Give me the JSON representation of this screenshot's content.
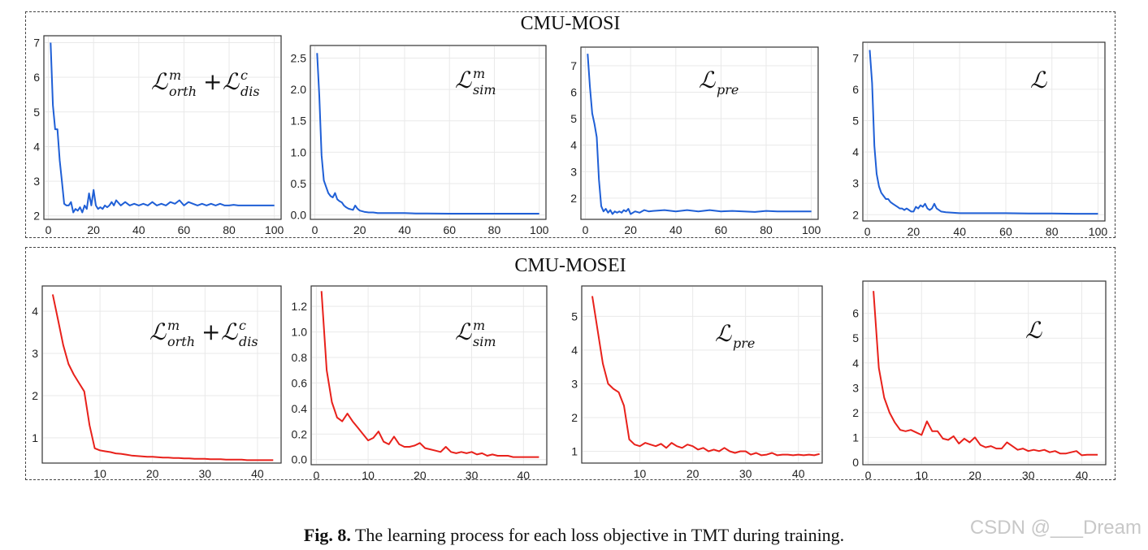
{
  "groups": [
    {
      "title": "CMU-MOSI"
    },
    {
      "title": "CMU-MOSEI"
    }
  ],
  "caption": {
    "label": "Fig. 8.",
    "text": "The learning process for each loss objective in TMT during training."
  },
  "watermark": "CSDN @___Dream",
  "colors": {
    "mosi": "#1f5fd6",
    "mosei": "#e8211b"
  },
  "chart_data": [
    {
      "type": "line",
      "group": "CMU-MOSI",
      "series_color": "#1f5fd6",
      "label": {
        "L": "ℒ",
        "sup1": "m",
        "sub1": "orth",
        "op": "+",
        "L2": "ℒ",
        "sup2": "c",
        "sub2": "dis"
      },
      "xlim": [
        -2,
        103
      ],
      "ylim": [
        1.9,
        7.2
      ],
      "xticks": [
        0,
        20,
        40,
        60,
        80,
        100
      ],
      "yticks": [
        2,
        3,
        4,
        5,
        6,
        7
      ],
      "x": [
        1,
        2,
        3,
        4,
        5,
        6,
        7,
        8,
        9,
        10,
        11,
        12,
        13,
        14,
        15,
        16,
        17,
        18,
        19,
        20,
        21,
        22,
        23,
        24,
        25,
        26,
        27,
        28,
        29,
        30,
        32,
        34,
        36,
        38,
        40,
        42,
        44,
        46,
        48,
        50,
        52,
        54,
        56,
        58,
        60,
        62,
        64,
        66,
        68,
        70,
        72,
        74,
        76,
        78,
        80,
        82,
        84,
        86,
        88,
        90,
        92,
        94,
        96,
        98,
        100
      ],
      "y": [
        7.0,
        5.2,
        4.5,
        4.5,
        3.6,
        3.0,
        2.35,
        2.3,
        2.3,
        2.4,
        2.1,
        2.2,
        2.15,
        2.25,
        2.1,
        2.3,
        2.2,
        2.65,
        2.3,
        2.75,
        2.3,
        2.2,
        2.25,
        2.2,
        2.3,
        2.25,
        2.3,
        2.4,
        2.3,
        2.45,
        2.3,
        2.4,
        2.3,
        2.35,
        2.3,
        2.35,
        2.3,
        2.4,
        2.3,
        2.35,
        2.3,
        2.4,
        2.35,
        2.45,
        2.3,
        2.4,
        2.35,
        2.3,
        2.35,
        2.3,
        2.35,
        2.3,
        2.35,
        2.3,
        2.3,
        2.32,
        2.3,
        2.3,
        2.3,
        2.3,
        2.3,
        2.3,
        2.3,
        2.3,
        2.3
      ]
    },
    {
      "type": "line",
      "group": "CMU-MOSI",
      "series_color": "#1f5fd6",
      "label": {
        "L": "ℒ",
        "sup1": "m",
        "sub1": "sim"
      },
      "xlim": [
        -2,
        103
      ],
      "ylim": [
        -0.07,
        2.7
      ],
      "xticks": [
        0,
        20,
        40,
        60,
        80,
        100
      ],
      "yticks": [
        0.0,
        0.5,
        1.0,
        1.5,
        2.0,
        2.5
      ],
      "ytick_labels": [
        "0.0",
        "0.5",
        "1.0",
        "1.5",
        "2.0",
        "2.5"
      ],
      "x": [
        1,
        2,
        3,
        4,
        5,
        6,
        7,
        8,
        9,
        10,
        11,
        12,
        13,
        14,
        15,
        16,
        17,
        18,
        19,
        20,
        22,
        24,
        26,
        28,
        30,
        35,
        40,
        45,
        50,
        60,
        70,
        80,
        90,
        100
      ],
      "y": [
        2.58,
        1.9,
        0.95,
        0.55,
        0.45,
        0.35,
        0.3,
        0.28,
        0.35,
        0.25,
        0.22,
        0.2,
        0.15,
        0.12,
        0.1,
        0.09,
        0.08,
        0.15,
        0.1,
        0.07,
        0.05,
        0.04,
        0.04,
        0.03,
        0.03,
        0.03,
        0.03,
        0.025,
        0.025,
        0.02,
        0.02,
        0.02,
        0.02,
        0.02
      ]
    },
    {
      "type": "line",
      "group": "CMU-MOSI",
      "series_color": "#1f5fd6",
      "label": {
        "L": "ℒ",
        "sub1": "pre"
      },
      "xlim": [
        -2,
        103
      ],
      "ylim": [
        1.2,
        7.7
      ],
      "xticks": [
        0,
        20,
        40,
        60,
        80,
        100
      ],
      "yticks": [
        2,
        3,
        4,
        5,
        6,
        7
      ],
      "x": [
        1,
        2,
        3,
        4,
        5,
        6,
        7,
        8,
        9,
        10,
        11,
        12,
        13,
        14,
        15,
        16,
        17,
        18,
        19,
        20,
        22,
        24,
        26,
        28,
        30,
        35,
        40,
        45,
        50,
        55,
        60,
        65,
        70,
        75,
        80,
        85,
        90,
        95,
        100
      ],
      "y": [
        7.45,
        6.2,
        5.2,
        4.8,
        4.3,
        2.7,
        1.7,
        1.5,
        1.6,
        1.45,
        1.55,
        1.4,
        1.5,
        1.45,
        1.5,
        1.45,
        1.55,
        1.5,
        1.6,
        1.4,
        1.5,
        1.45,
        1.55,
        1.5,
        1.52,
        1.55,
        1.5,
        1.55,
        1.5,
        1.55,
        1.5,
        1.52,
        1.5,
        1.48,
        1.52,
        1.5,
        1.5,
        1.5,
        1.5
      ]
    },
    {
      "type": "line",
      "group": "CMU-MOSI",
      "series_color": "#1f5fd6",
      "label": {
        "L": "ℒ"
      },
      "xlim": [
        -2,
        103
      ],
      "ylim": [
        1.8,
        7.5
      ],
      "xticks": [
        0,
        20,
        40,
        60,
        80,
        100
      ],
      "yticks": [
        2,
        3,
        4,
        5,
        6,
        7
      ],
      "x": [
        1,
        2,
        3,
        4,
        5,
        6,
        7,
        8,
        9,
        10,
        11,
        12,
        13,
        14,
        15,
        16,
        17,
        18,
        19,
        20,
        21,
        22,
        23,
        24,
        25,
        26,
        27,
        28,
        29,
        30,
        32,
        34,
        36,
        38,
        40,
        50,
        60,
        70,
        80,
        90,
        100
      ],
      "y": [
        7.25,
        6.2,
        4.2,
        3.3,
        2.9,
        2.7,
        2.6,
        2.5,
        2.5,
        2.4,
        2.35,
        2.3,
        2.25,
        2.2,
        2.2,
        2.15,
        2.2,
        2.15,
        2.1,
        2.1,
        2.25,
        2.2,
        2.3,
        2.25,
        2.35,
        2.2,
        2.15,
        2.2,
        2.35,
        2.2,
        2.1,
        2.08,
        2.07,
        2.06,
        2.05,
        2.05,
        2.05,
        2.04,
        2.04,
        2.03,
        2.03
      ]
    },
    {
      "type": "line",
      "group": "CMU-MOSEI",
      "series_color": "#e8211b",
      "label": {
        "L": "ℒ",
        "sup1": "m",
        "sub1": "orth",
        "op": "+",
        "L2": "ℒ",
        "sup2": "c",
        "sub2": "dis"
      },
      "xlim": [
        -1,
        44.5
      ],
      "ylim": [
        0.4,
        4.6
      ],
      "xticks": [
        10,
        20,
        30,
        40
      ],
      "yticks": [
        1,
        2,
        3,
        4
      ],
      "x": [
        1,
        2,
        3,
        4,
        5,
        6,
        7,
        8,
        9,
        10,
        11,
        12,
        13,
        14,
        15,
        16,
        17,
        18,
        19,
        20,
        21,
        22,
        23,
        24,
        25,
        26,
        27,
        28,
        29,
        30,
        31,
        32,
        33,
        34,
        35,
        36,
        37,
        38,
        39,
        40,
        41,
        42,
        43
      ],
      "y": [
        4.4,
        3.8,
        3.2,
        2.75,
        2.5,
        2.3,
        2.1,
        1.3,
        0.75,
        0.7,
        0.68,
        0.66,
        0.63,
        0.62,
        0.6,
        0.58,
        0.57,
        0.56,
        0.55,
        0.55,
        0.54,
        0.53,
        0.53,
        0.52,
        0.52,
        0.51,
        0.51,
        0.5,
        0.5,
        0.5,
        0.49,
        0.49,
        0.49,
        0.48,
        0.48,
        0.48,
        0.48,
        0.47,
        0.47,
        0.47,
        0.47,
        0.47,
        0.47
      ]
    },
    {
      "type": "line",
      "group": "CMU-MOSEI",
      "series_color": "#e8211b",
      "label": {
        "L": "ℒ",
        "sup1": "m",
        "sub1": "sim"
      },
      "xlim": [
        -1,
        44.5
      ],
      "ylim": [
        -0.04,
        1.36
      ],
      "xticks": [
        0,
        10,
        20,
        30,
        40
      ],
      "yticks": [
        0.0,
        0.2,
        0.4,
        0.6,
        0.8,
        1.0,
        1.2
      ],
      "ytick_labels": [
        "0.0",
        "0.2",
        "0.4",
        "0.6",
        "0.8",
        "1.0",
        "1.2"
      ],
      "x": [
        1,
        2,
        3,
        4,
        5,
        6,
        7,
        8,
        9,
        10,
        11,
        12,
        13,
        14,
        15,
        16,
        17,
        18,
        19,
        20,
        21,
        22,
        23,
        24,
        25,
        26,
        27,
        28,
        29,
        30,
        31,
        32,
        33,
        34,
        35,
        36,
        37,
        38,
        39,
        40,
        41,
        42,
        43
      ],
      "y": [
        1.32,
        0.7,
        0.45,
        0.33,
        0.3,
        0.36,
        0.3,
        0.25,
        0.2,
        0.15,
        0.17,
        0.22,
        0.14,
        0.12,
        0.18,
        0.12,
        0.1,
        0.1,
        0.11,
        0.13,
        0.09,
        0.08,
        0.07,
        0.06,
        0.1,
        0.06,
        0.05,
        0.06,
        0.05,
        0.06,
        0.04,
        0.05,
        0.03,
        0.04,
        0.03,
        0.03,
        0.03,
        0.02,
        0.02,
        0.02,
        0.02,
        0.02,
        0.02
      ]
    },
    {
      "type": "line",
      "group": "CMU-MOSEI",
      "series_color": "#e8211b",
      "label": {
        "L": "ℒ",
        "sub1": "pre"
      },
      "xlim": [
        -1,
        44.5
      ],
      "ylim": [
        0.65,
        5.9
      ],
      "xticks": [
        10,
        20,
        30,
        40
      ],
      "yticks": [
        1,
        2,
        3,
        4,
        5
      ],
      "x": [
        1,
        2,
        3,
        4,
        5,
        6,
        7,
        8,
        9,
        10,
        11,
        12,
        13,
        14,
        15,
        16,
        17,
        18,
        19,
        20,
        21,
        22,
        23,
        24,
        25,
        26,
        27,
        28,
        29,
        30,
        31,
        32,
        33,
        34,
        35,
        36,
        37,
        38,
        39,
        40,
        41,
        42,
        43,
        44
      ],
      "y": [
        5.6,
        4.6,
        3.6,
        3.0,
        2.85,
        2.75,
        2.35,
        1.35,
        1.2,
        1.15,
        1.25,
        1.2,
        1.15,
        1.22,
        1.1,
        1.25,
        1.15,
        1.1,
        1.2,
        1.15,
        1.05,
        1.1,
        1.0,
        1.05,
        1.0,
        1.1,
        1.0,
        0.95,
        1.0,
        1.0,
        0.9,
        0.95,
        0.88,
        0.9,
        0.95,
        0.88,
        0.9,
        0.9,
        0.88,
        0.9,
        0.88,
        0.9,
        0.88,
        0.92
      ]
    },
    {
      "type": "line",
      "group": "CMU-MOSEI",
      "series_color": "#e8211b",
      "label": {
        "L": "ℒ"
      },
      "xlim": [
        -1,
        44.5
      ],
      "ylim": [
        -0.1,
        7.3
      ],
      "xticks": [
        0,
        10,
        20,
        30,
        40
      ],
      "yticks": [
        0,
        1,
        2,
        3,
        4,
        5,
        6
      ],
      "x": [
        1,
        2,
        3,
        4,
        5,
        6,
        7,
        8,
        9,
        10,
        11,
        12,
        13,
        14,
        15,
        16,
        17,
        18,
        19,
        20,
        21,
        22,
        23,
        24,
        25,
        26,
        27,
        28,
        29,
        30,
        31,
        32,
        33,
        34,
        35,
        36,
        37,
        38,
        39,
        40,
        41,
        42,
        43
      ],
      "y": [
        6.9,
        3.8,
        2.6,
        2.0,
        1.6,
        1.3,
        1.25,
        1.3,
        1.2,
        1.1,
        1.65,
        1.25,
        1.25,
        0.95,
        0.9,
        1.05,
        0.75,
        0.95,
        0.8,
        1.0,
        0.7,
        0.6,
        0.65,
        0.55,
        0.55,
        0.8,
        0.65,
        0.5,
        0.55,
        0.45,
        0.5,
        0.45,
        0.5,
        0.4,
        0.45,
        0.35,
        0.35,
        0.4,
        0.45,
        0.28,
        0.3,
        0.3,
        0.3
      ]
    }
  ]
}
